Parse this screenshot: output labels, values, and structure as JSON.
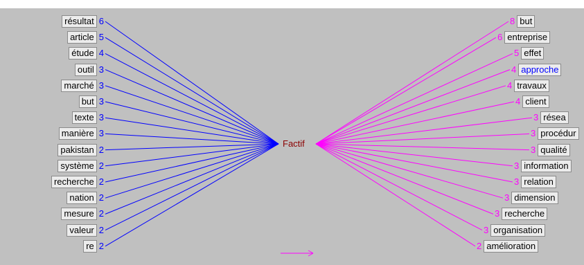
{
  "center": {
    "label": "Factif",
    "color": "#8b0000"
  },
  "colors": {
    "left_edge": "#0000ff",
    "right_edge": "#ff00ff",
    "highlight_text": "#0000ff",
    "panel": "#c0c0c0"
  },
  "left": [
    {
      "word": "résultat",
      "count": "6"
    },
    {
      "word": "article",
      "count": "5"
    },
    {
      "word": "étude",
      "count": "4"
    },
    {
      "word": "outil",
      "count": "3"
    },
    {
      "word": "marché",
      "count": "3"
    },
    {
      "word": "but",
      "count": "3"
    },
    {
      "word": "texte",
      "count": "3"
    },
    {
      "word": "manière",
      "count": "3"
    },
    {
      "word": "pakistan",
      "count": "2"
    },
    {
      "word": "système",
      "count": "2"
    },
    {
      "word": "recherche",
      "count": "2"
    },
    {
      "word": "nation",
      "count": "2"
    },
    {
      "word": "mesure",
      "count": "2"
    },
    {
      "word": "valeur",
      "count": "2"
    },
    {
      "word": "re",
      "count": "2"
    }
  ],
  "right": [
    {
      "word": "but",
      "count": "8"
    },
    {
      "word": "entreprise",
      "count": "6"
    },
    {
      "word": "effet",
      "count": "5"
    },
    {
      "word": "approche",
      "count": "4",
      "highlight": true
    },
    {
      "word": "travaux",
      "count": "4"
    },
    {
      "word": "client",
      "count": "4"
    },
    {
      "word": "résea",
      "count": "3"
    },
    {
      "word": "procédur",
      "count": "3"
    },
    {
      "word": "qualité",
      "count": "3"
    },
    {
      "word": "information",
      "count": "3"
    },
    {
      "word": "relation",
      "count": "3"
    },
    {
      "word": "dimension",
      "count": "3"
    },
    {
      "word": "recherche",
      "count": "3"
    },
    {
      "word": "organisation",
      "count": "3"
    },
    {
      "word": "amélioration",
      "count": "2"
    }
  ]
}
